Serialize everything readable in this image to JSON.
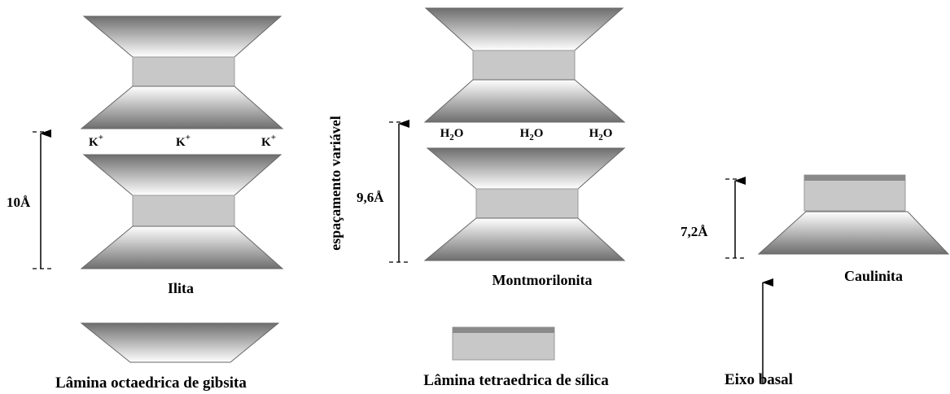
{
  "ilita": {
    "ions": [
      {
        "base": "K",
        "sup": "+"
      },
      {
        "base": "K",
        "sup": "+"
      },
      {
        "base": "K",
        "sup": "+"
      }
    ],
    "spacing": "10Å",
    "label": "Ilita"
  },
  "montmorilonita": {
    "water": [
      {
        "before": "H",
        "sub": "2",
        "after": "O"
      },
      {
        "before": "H",
        "sub": "2",
        "after": "O"
      },
      {
        "before": "H",
        "sub": "2",
        "after": "O"
      }
    ],
    "spacing": "9,6Å",
    "side_label": "espaçamento variável",
    "label": "Montmorilonita"
  },
  "caulinita": {
    "spacing": "7,2Å",
    "label": "Caulinita"
  },
  "legend": {
    "octahedral": "Lâmina octaedrica de gibsita",
    "tetrahedral": "Lâmina tetraedrica de sílica",
    "axis": "Eixo basal"
  }
}
